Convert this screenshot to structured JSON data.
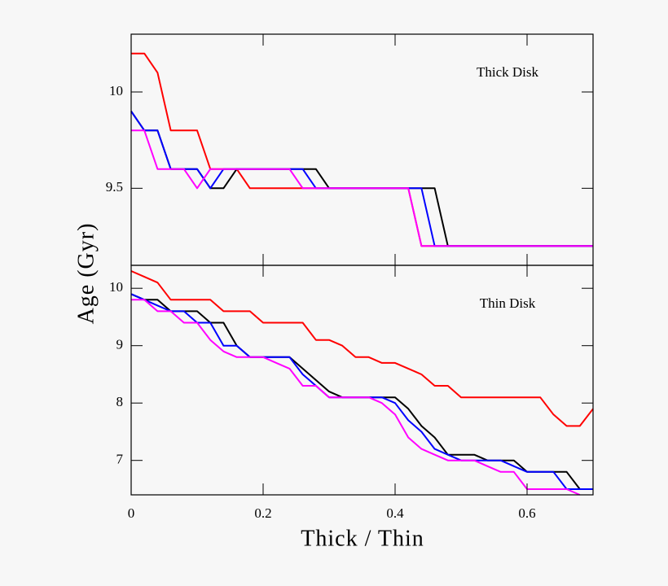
{
  "chart_data": [
    {
      "type": "line",
      "annotation": "Thick Disk",
      "ylabel": "Age (Gyr)",
      "x": [
        0,
        0.02,
        0.04,
        0.06,
        0.08,
        0.1,
        0.12,
        0.14,
        0.16,
        0.18,
        0.2,
        0.22,
        0.24,
        0.26,
        0.28,
        0.3,
        0.32,
        0.34,
        0.36,
        0.38,
        0.4,
        0.42,
        0.44,
        0.46,
        0.48,
        0.5,
        0.52,
        0.54,
        0.56,
        0.58,
        0.6,
        0.62,
        0.64,
        0.66,
        0.68,
        0.7
      ],
      "xlim": [
        0,
        0.7
      ],
      "ylim": [
        9.1,
        10.3
      ],
      "yticks": [
        9.5,
        10
      ],
      "series": [
        {
          "color": "#ff0000",
          "values": [
            10.2,
            10.2,
            10.1,
            9.8,
            9.8,
            9.8,
            9.6,
            9.6,
            9.6,
            9.5,
            9.5,
            9.5,
            9.5,
            9.5,
            9.5,
            9.5,
            9.5,
            9.5,
            9.5,
            9.5,
            9.5,
            9.5,
            9.2,
            9.2,
            9.2,
            9.2,
            9.2,
            9.2,
            9.2,
            9.2,
            9.2,
            9.2,
            9.2,
            9.2,
            9.2,
            9.2
          ]
        },
        {
          "color": "#000000",
          "values": [
            9.9,
            9.8,
            9.8,
            9.6,
            9.6,
            9.6,
            9.5,
            9.5,
            9.6,
            9.6,
            9.6,
            9.6,
            9.6,
            9.6,
            9.6,
            9.5,
            9.5,
            9.5,
            9.5,
            9.5,
            9.5,
            9.5,
            9.5,
            9.5,
            9.2,
            9.2,
            9.2,
            9.2,
            9.2,
            9.2,
            9.2,
            9.2,
            9.2,
            9.2,
            9.2,
            9.2
          ]
        },
        {
          "color": "#0000ff",
          "values": [
            9.9,
            9.8,
            9.8,
            9.6,
            9.6,
            9.6,
            9.5,
            9.6,
            9.6,
            9.6,
            9.6,
            9.6,
            9.6,
            9.6,
            9.5,
            9.5,
            9.5,
            9.5,
            9.5,
            9.5,
            9.5,
            9.5,
            9.5,
            9.2,
            9.2,
            9.2,
            9.2,
            9.2,
            9.2,
            9.2,
            9.2,
            9.2,
            9.2,
            9.2,
            9.2,
            9.2
          ]
        },
        {
          "color": "#ff00ff",
          "values": [
            9.8,
            9.8,
            9.6,
            9.6,
            9.6,
            9.5,
            9.6,
            9.6,
            9.6,
            9.6,
            9.6,
            9.6,
            9.6,
            9.5,
            9.5,
            9.5,
            9.5,
            9.5,
            9.5,
            9.5,
            9.5,
            9.5,
            9.2,
            9.2,
            9.2,
            9.2,
            9.2,
            9.2,
            9.2,
            9.2,
            9.2,
            9.2,
            9.2,
            9.2,
            9.2,
            9.2
          ]
        }
      ]
    },
    {
      "type": "line",
      "annotation": "Thin Disk",
      "xlabel": "Thick / Thin",
      "x": [
        0,
        0.02,
        0.04,
        0.06,
        0.08,
        0.1,
        0.12,
        0.14,
        0.16,
        0.18,
        0.2,
        0.22,
        0.24,
        0.26,
        0.28,
        0.3,
        0.32,
        0.34,
        0.36,
        0.38,
        0.4,
        0.42,
        0.44,
        0.46,
        0.48,
        0.5,
        0.52,
        0.54,
        0.56,
        0.58,
        0.6,
        0.62,
        0.64,
        0.66,
        0.68,
        0.7
      ],
      "xlim": [
        0,
        0.7
      ],
      "xticks": [
        0,
        0.2,
        0.4,
        0.6
      ],
      "ylim": [
        6.4,
        10.4
      ],
      "yticks": [
        7,
        8,
        9,
        10
      ],
      "series": [
        {
          "color": "#ff0000",
          "values": [
            10.3,
            10.2,
            10.1,
            9.8,
            9.8,
            9.8,
            9.8,
            9.6,
            9.6,
            9.6,
            9.4,
            9.4,
            9.4,
            9.4,
            9.1,
            9.1,
            9.0,
            8.8,
            8.8,
            8.7,
            8.7,
            8.6,
            8.5,
            8.3,
            8.3,
            8.1,
            8.1,
            8.1,
            8.1,
            8.1,
            8.1,
            8.1,
            7.8,
            7.6,
            7.6,
            7.9
          ]
        },
        {
          "color": "#000000",
          "values": [
            9.9,
            9.8,
            9.8,
            9.6,
            9.6,
            9.6,
            9.4,
            9.4,
            9.0,
            8.8,
            8.8,
            8.8,
            8.8,
            8.6,
            8.4,
            8.2,
            8.1,
            8.1,
            8.1,
            8.1,
            8.1,
            7.9,
            7.6,
            7.4,
            7.1,
            7.1,
            7.1,
            7.0,
            7.0,
            7.0,
            6.8,
            6.8,
            6.8,
            6.8,
            6.5,
            6.5
          ]
        },
        {
          "color": "#0000ff",
          "values": [
            9.9,
            9.8,
            9.7,
            9.6,
            9.6,
            9.4,
            9.4,
            9.0,
            9.0,
            8.8,
            8.8,
            8.8,
            8.8,
            8.5,
            8.3,
            8.1,
            8.1,
            8.1,
            8.1,
            8.1,
            8.0,
            7.7,
            7.5,
            7.2,
            7.1,
            7.0,
            7.0,
            7.0,
            7.0,
            6.9,
            6.8,
            6.8,
            6.8,
            6.5,
            6.5,
            6.5
          ]
        },
        {
          "color": "#ff00ff",
          "values": [
            9.8,
            9.8,
            9.6,
            9.6,
            9.4,
            9.4,
            9.1,
            8.9,
            8.8,
            8.8,
            8.8,
            8.7,
            8.6,
            8.3,
            8.3,
            8.1,
            8.1,
            8.1,
            8.1,
            8.0,
            7.8,
            7.4,
            7.2,
            7.1,
            7.0,
            7.0,
            7.0,
            6.9,
            6.8,
            6.8,
            6.5,
            6.5,
            6.5,
            6.5,
            6.4,
            null
          ]
        }
      ]
    }
  ]
}
